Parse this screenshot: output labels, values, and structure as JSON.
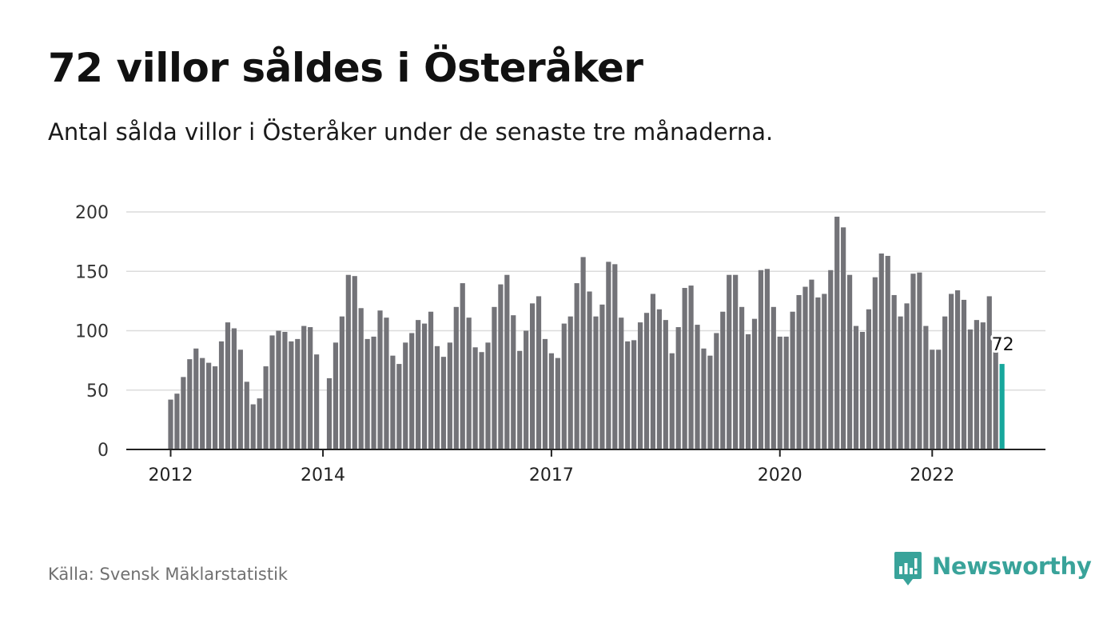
{
  "title": "72 villor såldes i Österåker",
  "subtitle": "Antal sålda villor i Österåker under de senaste tre månaderna.",
  "source": "Källa: Svensk Mäklarstatistik",
  "brand": {
    "name": "Newsworthy",
    "icon": "newsworthy-logo-icon"
  },
  "colors": {
    "bar": "#737378",
    "highlight": "#17a79c",
    "grid": "#dcdcdc",
    "axis": "#222222",
    "brand": "#39a39a"
  },
  "chart_data": {
    "type": "bar",
    "xlabel": "",
    "ylabel": "",
    "ylim": [
      0,
      200
    ],
    "yticks": [
      0,
      50,
      100,
      150,
      200
    ],
    "x_ticks": [
      {
        "label": "2012",
        "index": 0
      },
      {
        "label": "2014",
        "index": 24
      },
      {
        "label": "2017",
        "index": 60
      },
      {
        "label": "2020",
        "index": 96
      },
      {
        "label": "2022",
        "index": 120
      }
    ],
    "highlight_label": "72",
    "grid": true,
    "series": [
      {
        "values": [
          42,
          47,
          61,
          76,
          85,
          77,
          73,
          70,
          91,
          107,
          102,
          84,
          57,
          38,
          43,
          70,
          96,
          100,
          99,
          91,
          93,
          104,
          103,
          80,
          0,
          60,
          90,
          112,
          147,
          146,
          119,
          93,
          95,
          117,
          111,
          79,
          72,
          90,
          98,
          109,
          106,
          116,
          87,
          78,
          90,
          120,
          140,
          111,
          86,
          82,
          90,
          120,
          139,
          147,
          113,
          83,
          100,
          123,
          129,
          93,
          81,
          77,
          106,
          112,
          140,
          162,
          133,
          112,
          122,
          158,
          156,
          111,
          91,
          92,
          107,
          115,
          131,
          118,
          109,
          81,
          103,
          136,
          138,
          105,
          85,
          79,
          98,
          116,
          147,
          147,
          120,
          97,
          110,
          151,
          152,
          120,
          95,
          95,
          116,
          130,
          137,
          143,
          128,
          131,
          151,
          196,
          187,
          147,
          104,
          99,
          118,
          145,
          165,
          163,
          130,
          112,
          123,
          148,
          149,
          104,
          84,
          84,
          112,
          131,
          134,
          126,
          101,
          109,
          107,
          129,
          82,
          72
        ]
      }
    ]
  }
}
